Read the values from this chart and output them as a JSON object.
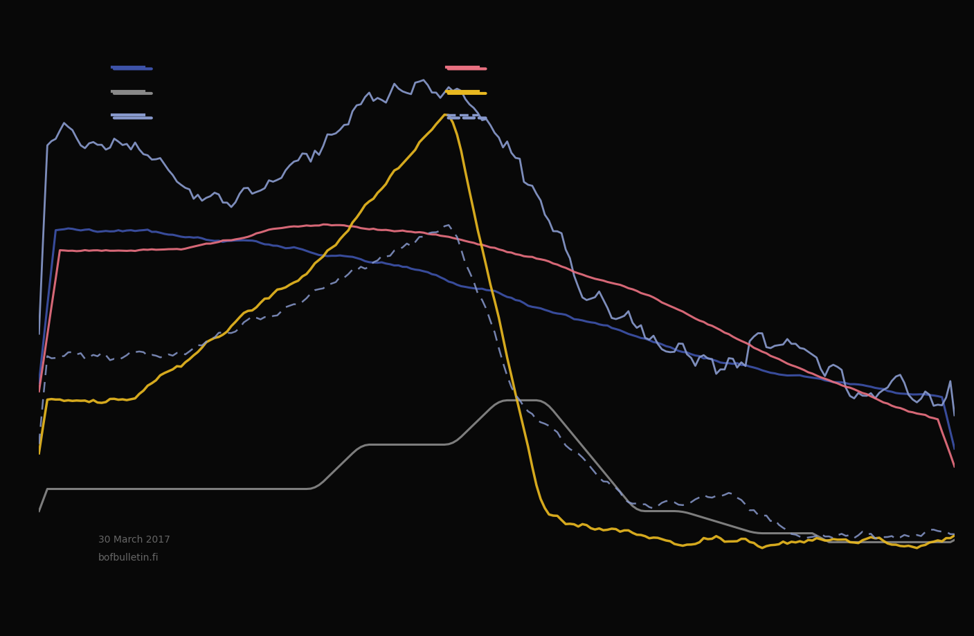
{
  "background_color": "#080808",
  "text_color": "#aaaaaa",
  "legend_labels_left": [
    "",
    "",
    ""
  ],
  "legend_labels_right": [
    "",
    "",
    ""
  ],
  "line_colors": [
    "#3d52a8",
    "#888888",
    "#8899cc",
    "#e87080",
    "#e8b820",
    "#8899cc"
  ],
  "line_styles": [
    "solid",
    "solid",
    "solid",
    "solid",
    "solid",
    "dashed"
  ],
  "watermark_line1": "30 March 2017",
  "watermark_line2": "bofbulletin.fi"
}
